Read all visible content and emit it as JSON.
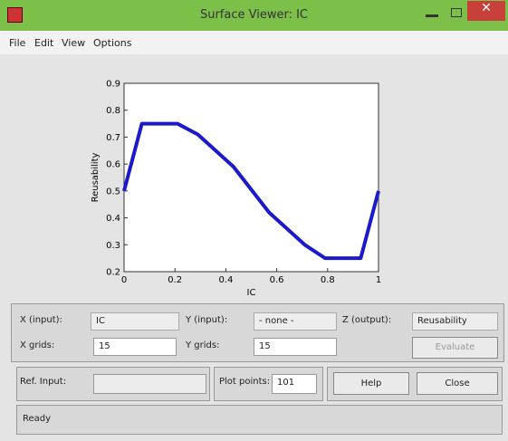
{
  "window": {
    "title": "Surface Viewer: IC"
  },
  "menu": [
    "File",
    "Edit",
    "View",
    "Options"
  ],
  "chart_data": {
    "type": "line",
    "xlabel": "IC",
    "ylabel": "Reusability",
    "x": [
      0,
      0.07,
      0.21,
      0.29,
      0.43,
      0.57,
      0.71,
      0.79,
      0.93,
      1
    ],
    "values": [
      0.5,
      0.75,
      0.75,
      0.71,
      0.59,
      0.42,
      0.3,
      0.25,
      0.25,
      0.5
    ],
    "color": "#1a1acc",
    "xlim": [
      0,
      1
    ],
    "ylim": [
      0.2,
      0.9
    ],
    "xticks": [
      0,
      0.2,
      0.4,
      0.6,
      0.8,
      1
    ],
    "yticks": [
      0.2,
      0.3,
      0.4,
      0.5,
      0.6,
      0.7,
      0.8,
      0.9
    ]
  },
  "controls": {
    "x_input_label": "X (input):",
    "x_input_value": "IC",
    "y_input_label": "Y (input):",
    "y_input_value": "- none -",
    "z_output_label": "Z (output):",
    "z_output_value": "Reusability",
    "x_grids_label": "X grids:",
    "x_grids_value": "15",
    "y_grids_label": "Y grids:",
    "y_grids_value": "15",
    "evaluate": "Evaluate",
    "ref_input_label": "Ref. Input:",
    "plot_points_label": "Plot points:",
    "plot_points_value": "101",
    "help": "Help",
    "close": "Close",
    "status": "Ready"
  }
}
